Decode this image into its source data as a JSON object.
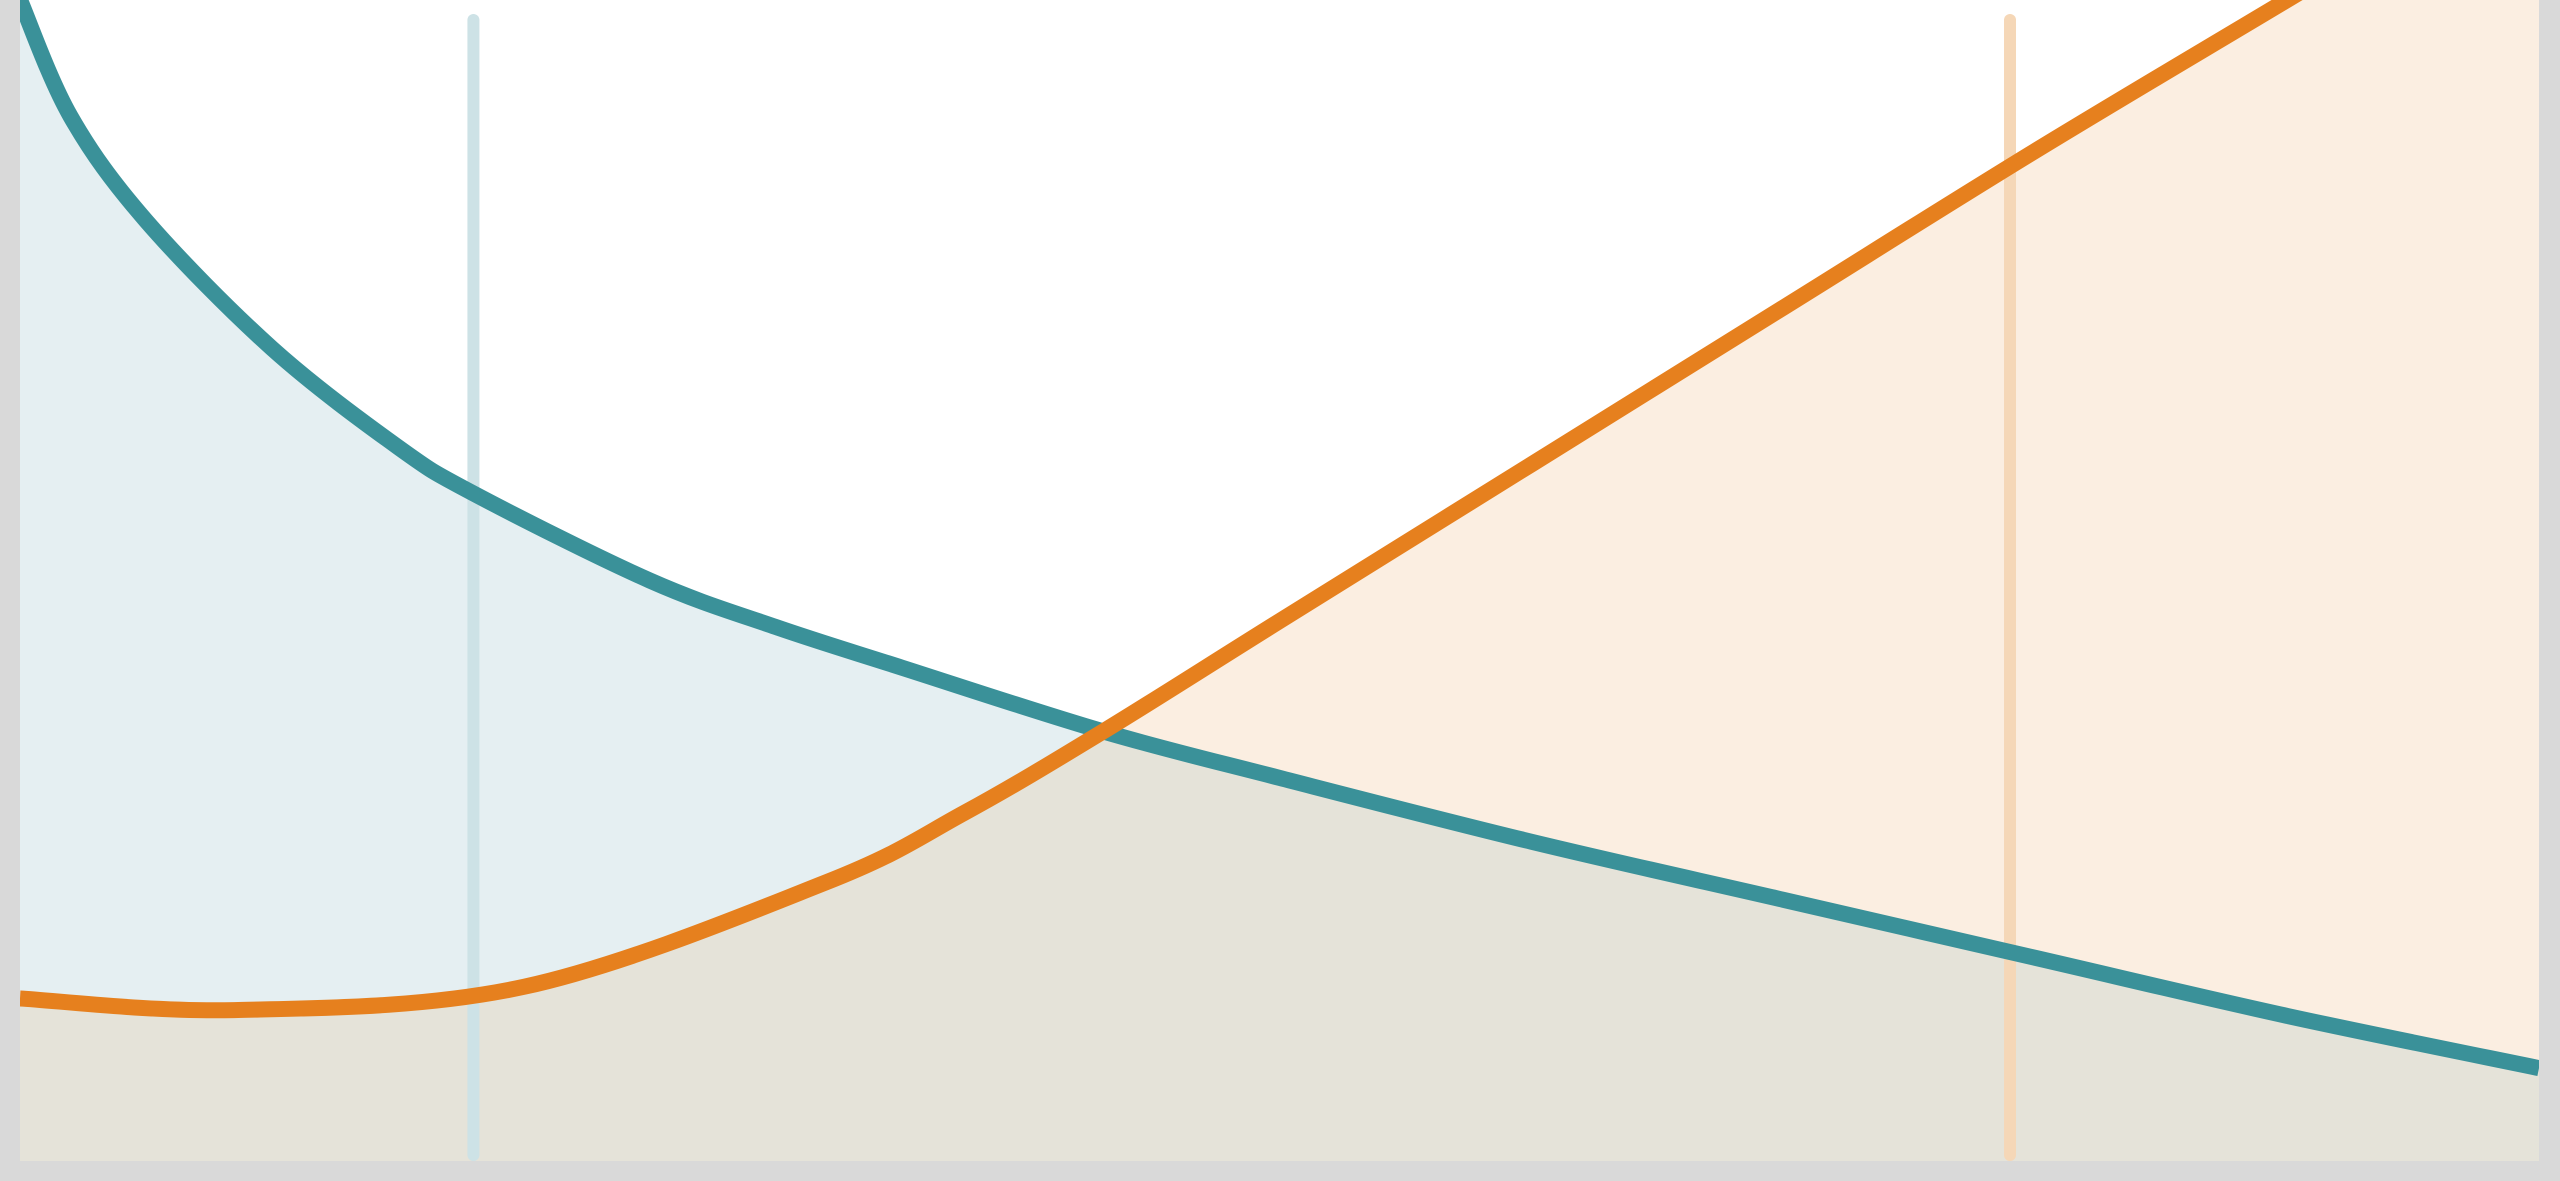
{
  "colors": {
    "frame": "#d9d9d9",
    "panel": "#ffffff",
    "teal": "#3a9199",
    "teal_area": "#e5eff2",
    "teal_marker": "#cde2e6",
    "orange": "#e6801e",
    "orange_area": "#fbeee1",
    "orange_marker": "#f5d7b7",
    "overlap_area": "#e5e3d9"
  },
  "chart_data": {
    "type": "area",
    "title": "",
    "xlabel": "",
    "ylabel": "",
    "xlim": [
      0,
      100
    ],
    "ylim": [
      0,
      100
    ],
    "grid": false,
    "legend": "none",
    "series": [
      {
        "color": "#3a9199",
        "fill": "#e5eff2",
        "x": [
          0,
          2,
          5,
          10,
          15,
          18,
          25,
          30,
          35,
          43,
          50,
          60,
          70,
          80,
          90,
          100
        ],
        "y": [
          100,
          90,
          81,
          70,
          61.5,
          57.5,
          50,
          46,
          42.5,
          37,
          33,
          27.5,
          22.5,
          17.5,
          12.5,
          8
        ]
      },
      {
        "color": "#e6801e",
        "fill": "#fbeee1",
        "x": [
          0,
          8.5,
          20,
          32,
          37.5,
          43,
          50,
          60,
          70,
          80,
          90,
          100
        ],
        "y": [
          14,
          13,
          15,
          24,
          30,
          37,
          46.5,
          60,
          73.5,
          87,
          100,
          113
        ]
      }
    ],
    "markers": [
      {
        "x": 18,
        "color": "#cde2e6"
      },
      {
        "x": 79,
        "color": "#f5d7b7"
      }
    ]
  }
}
